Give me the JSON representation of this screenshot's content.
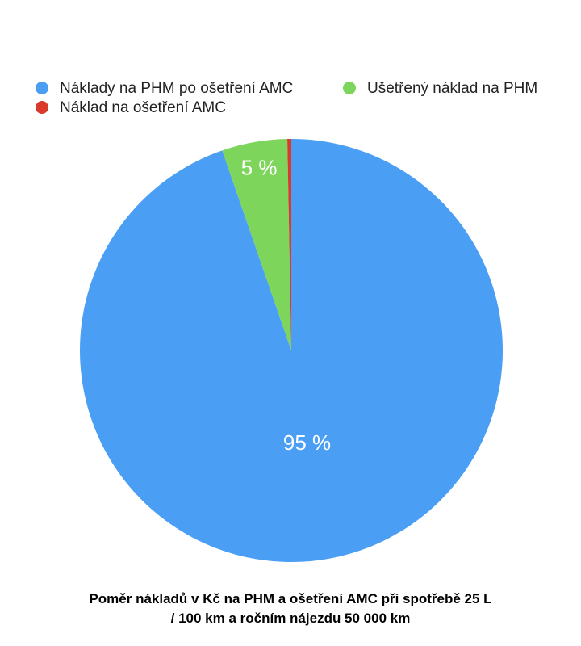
{
  "chart_data": {
    "type": "pie",
    "title": "Poměr nákladů v Kč na PHM a ošetření AMC při spotřebě 25 L / 100 km a ročním nájezdu 50 000 km",
    "categories": [
      "Náklady na PHM po ošetření AMC",
      "Ušetřený náklad na PHM",
      "Náklad na ošetření AMC"
    ],
    "values": [
      94.7,
      5,
      0.3
    ],
    "value_labels": [
      "95 %",
      "5 %",
      null
    ],
    "colors": [
      "#4a9ff5",
      "#7dd55b",
      "#d93a2b"
    ]
  }
}
